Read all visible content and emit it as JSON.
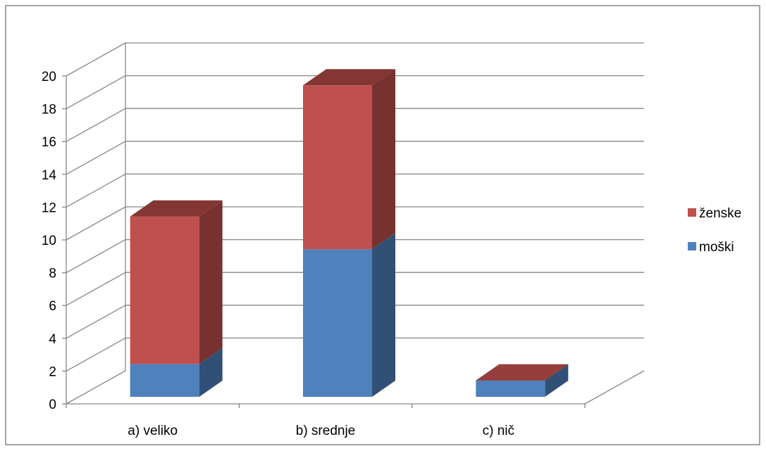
{
  "chart_data": {
    "type": "bar",
    "stacked": true,
    "three_d": true,
    "categories": [
      "a) veliko",
      "b) srednje",
      "c) nič"
    ],
    "series": [
      {
        "name": "moški",
        "values": [
          2,
          9,
          1
        ],
        "color": "#4F81BD"
      },
      {
        "name": "ženske",
        "values": [
          9,
          10,
          0
        ],
        "color": "#C0504D"
      }
    ],
    "title": "",
    "xlabel": "",
    "ylabel": "",
    "ylim": [
      0,
      20
    ],
    "yticks": [
      0,
      2,
      4,
      6,
      8,
      10,
      12,
      14,
      16,
      18,
      20
    ],
    "grid": true,
    "legend_position": "right"
  }
}
